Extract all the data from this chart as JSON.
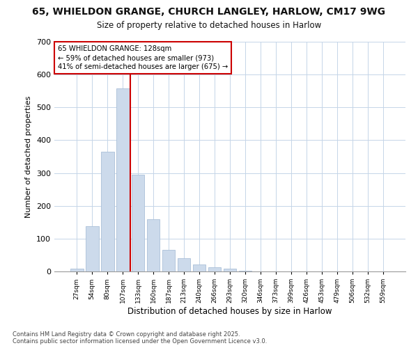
{
  "title_line1": "65, WHIELDON GRANGE, CHURCH LANGLEY, HARLOW, CM17 9WG",
  "title_line2": "Size of property relative to detached houses in Harlow",
  "xlabel": "Distribution of detached houses by size in Harlow",
  "ylabel": "Number of detached properties",
  "categories": [
    "27sqm",
    "54sqm",
    "80sqm",
    "107sqm",
    "133sqm",
    "160sqm",
    "187sqm",
    "213sqm",
    "240sqm",
    "266sqm",
    "293sqm",
    "320sqm",
    "346sqm",
    "373sqm",
    "399sqm",
    "426sqm",
    "453sqm",
    "479sqm",
    "506sqm",
    "532sqm",
    "559sqm"
  ],
  "values": [
    8,
    138,
    365,
    558,
    295,
    160,
    65,
    40,
    22,
    13,
    8,
    3,
    0,
    0,
    0,
    0,
    0,
    0,
    0,
    0,
    0
  ],
  "bar_color": "#ccdaeb",
  "bar_edge_color": "#aabfd8",
  "grid_color": "#c5d5e8",
  "background_color": "#ffffff",
  "vline_color": "#cc0000",
  "vline_x_index": 4,
  "annotation_text": "65 WHIELDON GRANGE: 128sqm\n← 59% of detached houses are smaller (973)\n41% of semi-detached houses are larger (675) →",
  "annotation_box_color": "#ffffff",
  "annotation_box_edge": "#cc0000",
  "ylim": [
    0,
    700
  ],
  "yticks": [
    0,
    100,
    200,
    300,
    400,
    500,
    600,
    700
  ],
  "footer_line1": "Contains HM Land Registry data © Crown copyright and database right 2025.",
  "footer_line2": "Contains public sector information licensed under the Open Government Licence v3.0."
}
